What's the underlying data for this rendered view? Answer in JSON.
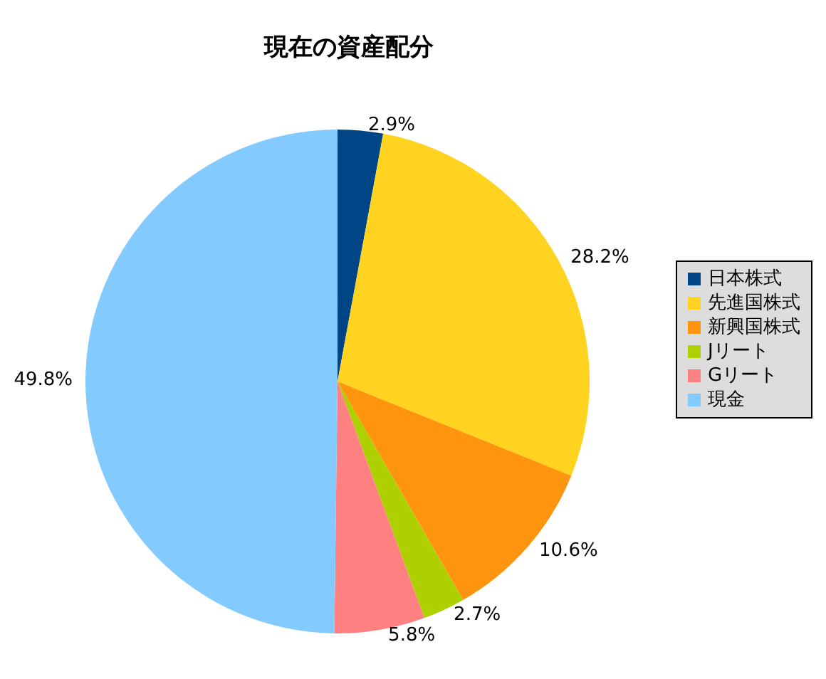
{
  "chart_data": {
    "type": "pie",
    "title": "現在の資産配分",
    "categories": [
      "日本株式",
      "先進国株式",
      "新興国株式",
      "Jリート",
      "Gリート",
      "現金"
    ],
    "values": [
      2.9,
      28.2,
      10.6,
      2.7,
      5.8,
      49.8
    ],
    "value_labels": [
      "2.9%",
      "28.2%",
      "10.6%",
      "2.7%",
      "5.8%",
      "49.8%"
    ],
    "colors": [
      "#004586",
      "#ffd320",
      "#ff950e",
      "#aecf00",
      "#ff8080",
      "#83caff"
    ],
    "legend": "right"
  }
}
